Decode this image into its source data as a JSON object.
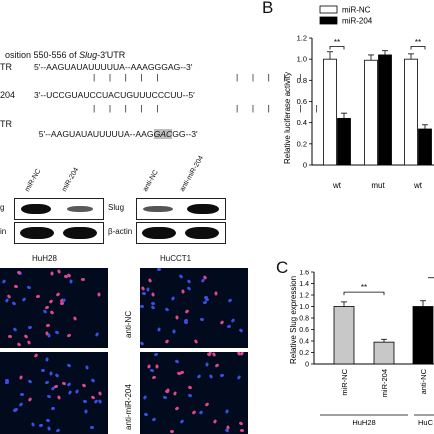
{
  "panel_a": {
    "header_prefix": "osition 550-556 of ",
    "header_gene": "Slug",
    "header_suffix": "-3′UTR",
    "rows": [
      {
        "label": "TR",
        "seq": "5′--AAGUAUAUUUUUA--AAAGGGAG--3′"
      },
      {
        "label": "204",
        "seq": "3′--UCCGUAUCCUACUGUUUCCCUU--5′"
      },
      {
        "label": "TR",
        "seq_start": "5′--AAGUAUAUUUUUA--AAG",
        "seq_mut": "GAC",
        "seq_end": "GG--3′"
      }
    ]
  },
  "panel_b": {
    "letter": "B",
    "legend": [
      "miR-NC",
      "miR-204"
    ],
    "sig": "**",
    "chart_data": {
      "type": "bar",
      "categories": [
        "wt",
        "mut",
        "wt"
      ],
      "series": [
        {
          "name": "miR-NC",
          "values": [
            1.0,
            0.99,
            1.0
          ],
          "errors": [
            0.07,
            0.05,
            0.05
          ]
        },
        {
          "name": "miR-204",
          "values": [
            0.44,
            1.04,
            0.34
          ],
          "errors": [
            0.05,
            0.04,
            0.04
          ]
        }
      ],
      "ylabel": "Relative luciferase activity",
      "ylim": [
        0,
        1.2
      ],
      "yticks": [
        "0",
        "0.2",
        "0.4",
        "0.6",
        "0.8",
        "1.0",
        "1.2"
      ]
    }
  },
  "blots": {
    "left_lanes": [
      "miR-NC",
      "miR-204"
    ],
    "right_lanes": [
      "anti-NC",
      "anti-miR-204"
    ],
    "left_rows": [
      "g",
      "in"
    ],
    "right_rows": [
      "Slug",
      "β-actin"
    ]
  },
  "micrographs": {
    "left_title": "HuH28",
    "right_title": "HuCCT1",
    "row_labels": [
      "anti-NC",
      "anti-miR-204"
    ]
  },
  "panel_c": {
    "letter": "C",
    "sig": "**",
    "chart_data": {
      "type": "bar",
      "categories": [
        "miR-NC",
        "miR-204",
        "anti-NC"
      ],
      "values": [
        1.0,
        0.38,
        1.0
      ],
      "errors": [
        0.08,
        0.05,
        0.1
      ],
      "ylabel": "Relative Slug expression",
      "ylim": [
        0,
        1.6
      ],
      "yticks": [
        "0",
        "0.2",
        "0.4",
        "0.6",
        "0.8",
        "1.0",
        "1.2",
        "1.4",
        "1.6"
      ],
      "groups": [
        "HuH28",
        "HuC"
      ],
      "colors": [
        "#c8c8c8",
        "#c8c8c8",
        "#000000"
      ]
    }
  }
}
